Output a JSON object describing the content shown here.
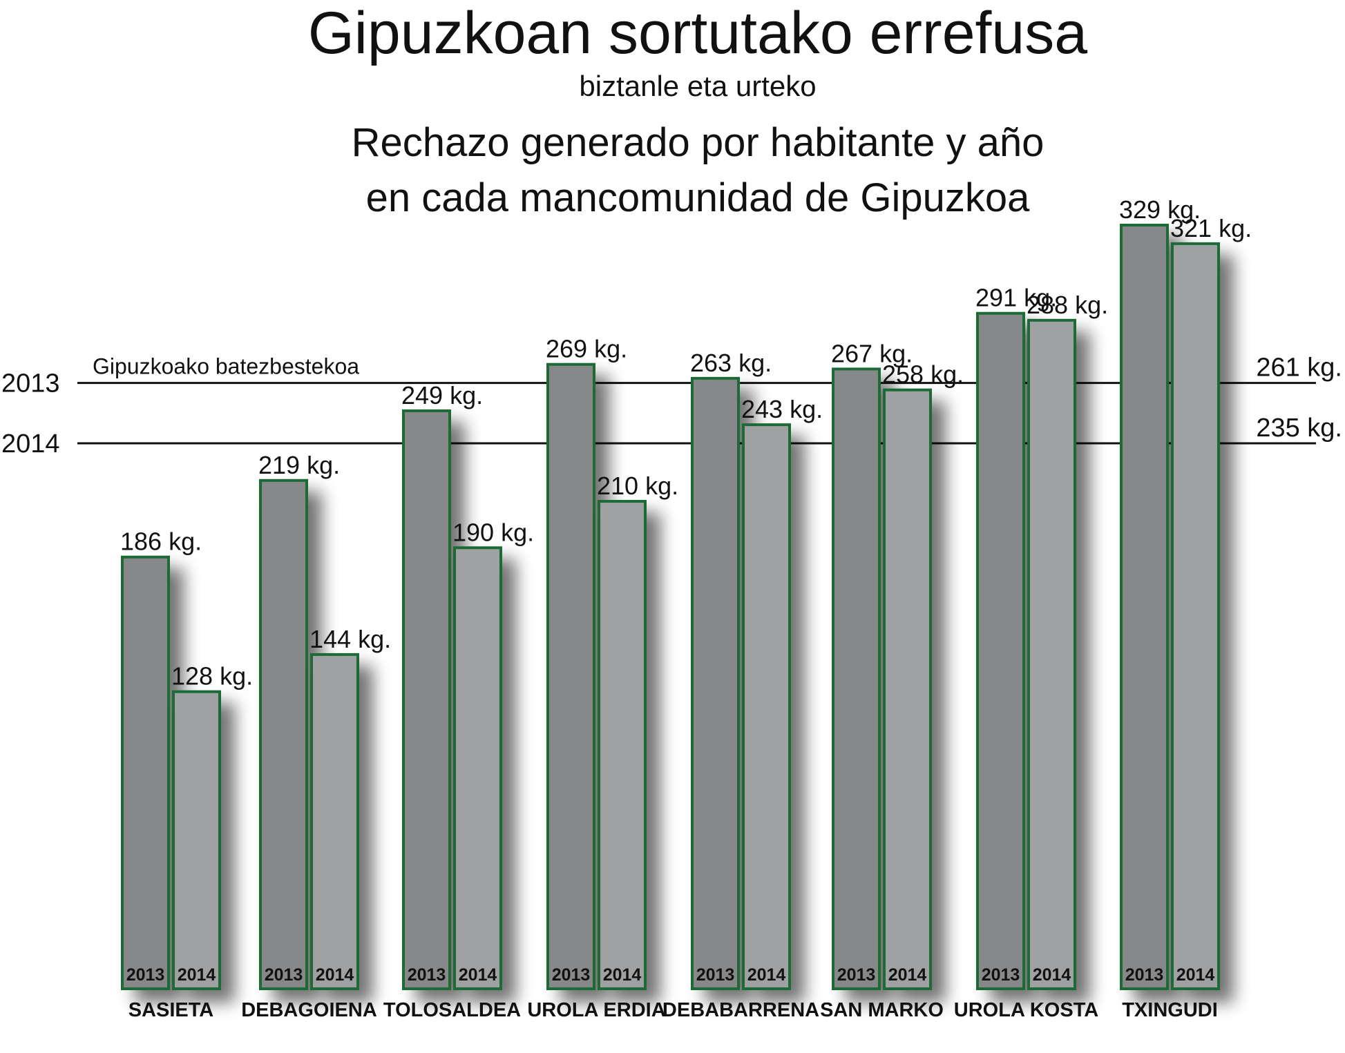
{
  "chart_data": {
    "type": "bar",
    "title": "Gipuzkoan sortutako errefusa",
    "subtitle": "biztanle eta urteko",
    "title_es_line1": "Rechazo generado por habitante y año",
    "title_es_line2": "en cada mancomunidad de Gipuzkoa",
    "categories": [
      "SASIETA",
      "DEBAGOIENA",
      "TOLOSALDEA",
      "UROLA ERDIA",
      "DEBABARRENA",
      "SAN MARKO",
      "UROLA KOSTA",
      "TXINGUDI"
    ],
    "series": [
      {
        "name": "2013",
        "values": [
          186,
          219,
          249,
          269,
          263,
          267,
          291,
          329
        ],
        "color": "#878889"
      },
      {
        "name": "2014",
        "values": [
          128,
          144,
          190,
          210,
          243,
          258,
          288,
          321
        ],
        "color": "#a0a1a3"
      }
    ],
    "value_suffix": " kg.",
    "bar_outline_color": "#1e6b35",
    "reference_lines": [
      {
        "year_label": "2013",
        "value": 261,
        "value_label": "261 kg."
      },
      {
        "year_label": "2014",
        "value": 235,
        "value_label": "235 kg."
      }
    ],
    "reference_name": "Gipuzkoako batezbestekoa",
    "ylim": [
      0,
      329
    ]
  }
}
